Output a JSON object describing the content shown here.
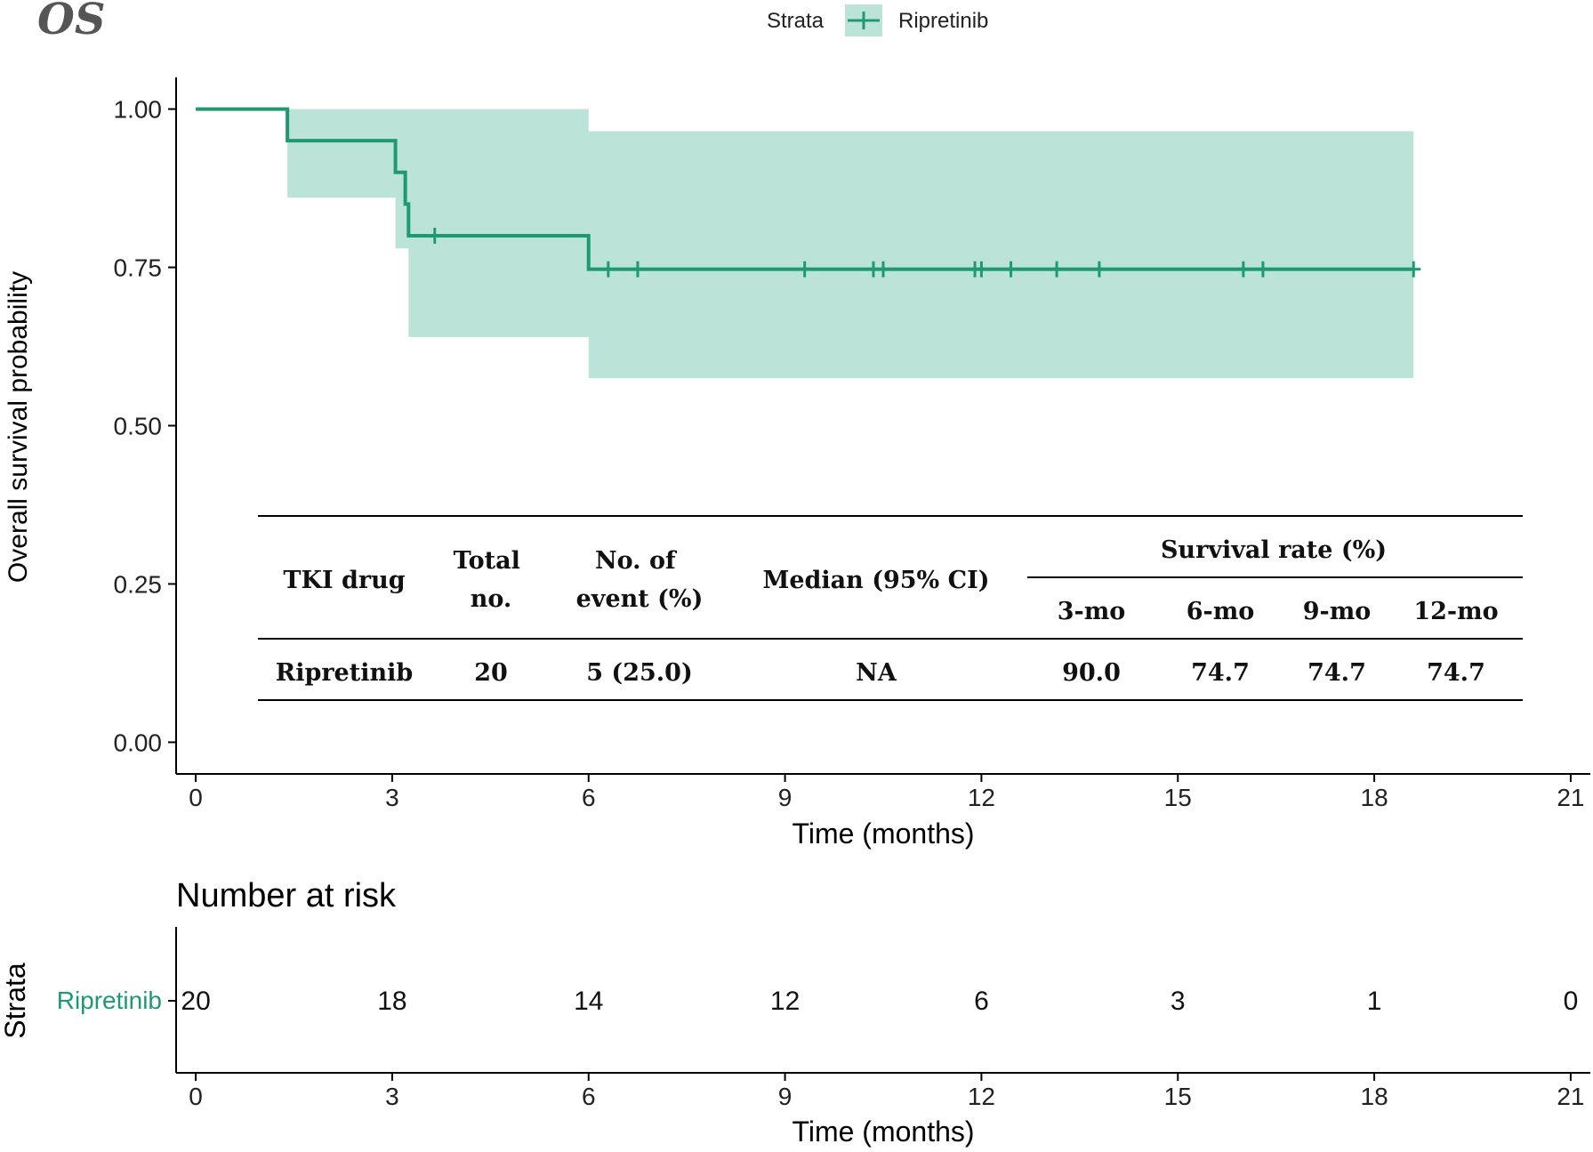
{
  "panel_label": "OS",
  "legend": {
    "title": "Strata",
    "entries": [
      "Ripretinib"
    ]
  },
  "colors": {
    "curve": "#1e9a72",
    "band": "#bce3d8",
    "axis": "#000000",
    "risk_label": "#1e9a72"
  },
  "chart_data": {
    "type": "line",
    "subtype": "kaplan-meier",
    "title": "OS",
    "xlabel": "Time (months)",
    "ylabel": "Overall survival probability",
    "xlim": [
      -0.3,
      21.3
    ],
    "ylim": [
      -0.05,
      1.05
    ],
    "xticks": [
      0,
      3,
      6,
      9,
      12,
      15,
      18,
      21
    ],
    "xtick_labels": [
      "0",
      "3",
      "6",
      "9",
      "12",
      "15",
      "18",
      "21"
    ],
    "yticks": [
      0,
      0.25,
      0.5,
      0.75,
      1.0
    ],
    "ytick_labels": [
      "0.00",
      "0.25",
      "0.50",
      "0.75",
      "1.00"
    ],
    "grid": false,
    "legend_position": "top-center",
    "series": [
      {
        "name": "Ripretinib",
        "steps": [
          {
            "t": 0,
            "s": 1.0
          },
          {
            "t": 1.4,
            "s": 0.95
          },
          {
            "t": 3.05,
            "s": 0.9
          },
          {
            "t": 3.2,
            "s": 0.85
          },
          {
            "t": 3.25,
            "s": 0.8
          },
          {
            "t": 6.0,
            "s": 0.747
          },
          {
            "t": 18.6,
            "s": 0.747
          }
        ],
        "ci": [
          {
            "t": 0,
            "lo": 1.0,
            "hi": 1.0
          },
          {
            "t": 1.4,
            "lo": 0.86,
            "hi": 1.0
          },
          {
            "t": 3.05,
            "lo": 0.78,
            "hi": 1.0
          },
          {
            "t": 3.25,
            "lo": 0.64,
            "hi": 1.0
          },
          {
            "t": 6.0,
            "lo": 0.575,
            "hi": 0.965
          },
          {
            "t": 18.6,
            "lo": 0.575,
            "hi": 0.965
          }
        ],
        "censor_times": [
          3.65,
          6.3,
          6.75,
          9.3,
          10.35,
          10.5,
          11.9,
          12.0,
          12.45,
          13.15,
          13.8,
          16.0,
          16.3,
          18.6
        ]
      }
    ],
    "summary_table": {
      "headers": {
        "drug": "TKI drug",
        "total": "Total no.",
        "events": "No. of event (%)",
        "median": "Median (95% CI)",
        "survival_group": "Survival rate (%)",
        "rates": [
          "3-mo",
          "6-mo",
          "9-mo",
          "12-mo"
        ]
      },
      "rows": [
        {
          "drug": "Ripretinib",
          "total": "20",
          "events": "5 (25.0)",
          "median": "NA",
          "rates": [
            "90.0",
            "74.7",
            "74.7",
            "74.7"
          ]
        }
      ]
    },
    "risk_table": {
      "title": "Number at risk",
      "ylabel": "Strata",
      "xlabel": "Time (months)",
      "strata": [
        {
          "name": "Ripretinib",
          "times": [
            0,
            3,
            6,
            9,
            12,
            15,
            18,
            21
          ],
          "counts": [
            "20",
            "18",
            "14",
            "12",
            "6",
            "3",
            "1",
            "0"
          ]
        }
      ]
    }
  }
}
